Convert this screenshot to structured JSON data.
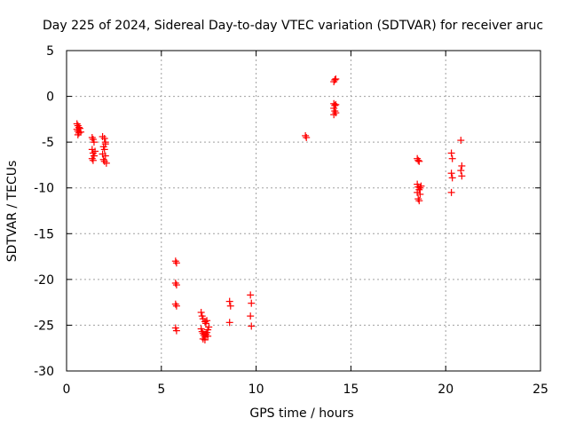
{
  "chart_data": {
    "type": "scatter",
    "title": "Day 225 of 2024, Sidereal Day-to-day VTEC variation (SDTVAR) for receiver aruc",
    "xlabel": "GPS time / hours",
    "ylabel": "SDTVAR / TECUs",
    "xlim": [
      0,
      25
    ],
    "ylim": [
      -30,
      5
    ],
    "xticks": [
      0,
      5,
      10,
      15,
      20,
      25
    ],
    "yticks": [
      5,
      0,
      -5,
      -10,
      -15,
      -20,
      -25,
      -30
    ],
    "xtick_labels": [
      "0",
      "5",
      "10",
      "15",
      "20",
      "25"
    ],
    "ytick_labels": [
      "5",
      "0",
      "-5",
      "-10",
      "-15",
      "-20",
      "-25",
      "-30"
    ],
    "grid": true,
    "marker": "+",
    "color": "#ff0000",
    "series": [
      {
        "name": "SDTVAR",
        "points": [
          [
            0.55,
            -3.0
          ],
          [
            0.6,
            -3.2
          ],
          [
            0.65,
            -3.4
          ],
          [
            0.55,
            -3.6
          ],
          [
            0.6,
            -3.8
          ],
          [
            0.65,
            -4.0
          ],
          [
            0.7,
            -3.5
          ],
          [
            0.75,
            -3.9
          ],
          [
            0.6,
            -4.2
          ],
          [
            1.35,
            -4.5
          ],
          [
            1.4,
            -4.7
          ],
          [
            1.45,
            -5.0
          ],
          [
            1.35,
            -5.8
          ],
          [
            1.4,
            -6.2
          ],
          [
            1.45,
            -6.5
          ],
          [
            1.35,
            -6.8
          ],
          [
            1.4,
            -7.0
          ],
          [
            1.5,
            -6.0
          ],
          [
            1.9,
            -4.4
          ],
          [
            2.0,
            -4.6
          ],
          [
            2.05,
            -5.0
          ],
          [
            1.95,
            -5.5
          ],
          [
            2.0,
            -5.8
          ],
          [
            1.9,
            -6.3
          ],
          [
            2.05,
            -6.5
          ],
          [
            1.95,
            -6.9
          ],
          [
            2.0,
            -7.1
          ],
          [
            2.1,
            -7.3
          ],
          [
            2.05,
            -5.2
          ],
          [
            5.75,
            -18.0
          ],
          [
            5.8,
            -18.2
          ],
          [
            5.75,
            -20.4
          ],
          [
            5.8,
            -20.6
          ],
          [
            5.75,
            -22.7
          ],
          [
            5.8,
            -22.9
          ],
          [
            5.75,
            -25.3
          ],
          [
            5.8,
            -25.6
          ],
          [
            7.1,
            -23.6
          ],
          [
            7.15,
            -24.0
          ],
          [
            7.2,
            -24.3
          ],
          [
            7.3,
            -24.6
          ],
          [
            7.35,
            -24.8
          ],
          [
            7.4,
            -24.5
          ],
          [
            7.1,
            -25.4
          ],
          [
            7.15,
            -25.7
          ],
          [
            7.2,
            -25.9
          ],
          [
            7.25,
            -26.1
          ],
          [
            7.3,
            -26.3
          ],
          [
            7.35,
            -26.0
          ],
          [
            7.4,
            -25.8
          ],
          [
            7.45,
            -25.5
          ],
          [
            7.5,
            -25.2
          ],
          [
            7.2,
            -26.5
          ],
          [
            7.3,
            -26.6
          ],
          [
            7.45,
            -26.2
          ],
          [
            8.6,
            -22.4
          ],
          [
            8.65,
            -22.9
          ],
          [
            8.6,
            -24.7
          ],
          [
            9.7,
            -21.7
          ],
          [
            9.75,
            -22.6
          ],
          [
            9.7,
            -24.0
          ],
          [
            9.75,
            -25.1
          ],
          [
            12.6,
            -4.3
          ],
          [
            12.65,
            -4.5
          ],
          [
            14.1,
            1.6
          ],
          [
            14.15,
            1.8
          ],
          [
            14.2,
            1.9
          ],
          [
            14.1,
            -0.8
          ],
          [
            14.15,
            -1.0
          ],
          [
            14.2,
            -0.9
          ],
          [
            14.1,
            -1.3
          ],
          [
            14.15,
            -1.6
          ],
          [
            14.2,
            -1.8
          ],
          [
            14.1,
            -2.0
          ],
          [
            18.5,
            -6.8
          ],
          [
            18.55,
            -7.0
          ],
          [
            18.6,
            -7.1
          ],
          [
            18.5,
            -9.6
          ],
          [
            18.55,
            -9.9
          ],
          [
            18.6,
            -10.2
          ],
          [
            18.5,
            -10.5
          ],
          [
            18.65,
            -10.7
          ],
          [
            18.55,
            -11.2
          ],
          [
            18.6,
            -11.4
          ],
          [
            18.7,
            -9.8
          ],
          [
            18.65,
            -10.0
          ],
          [
            20.3,
            -6.2
          ],
          [
            20.35,
            -6.8
          ],
          [
            20.3,
            -8.4
          ],
          [
            20.35,
            -8.9
          ],
          [
            20.3,
            -10.5
          ],
          [
            20.8,
            -4.8
          ],
          [
            20.85,
            -7.6
          ],
          [
            20.8,
            -8.1
          ],
          [
            20.85,
            -8.7
          ]
        ]
      }
    ]
  }
}
